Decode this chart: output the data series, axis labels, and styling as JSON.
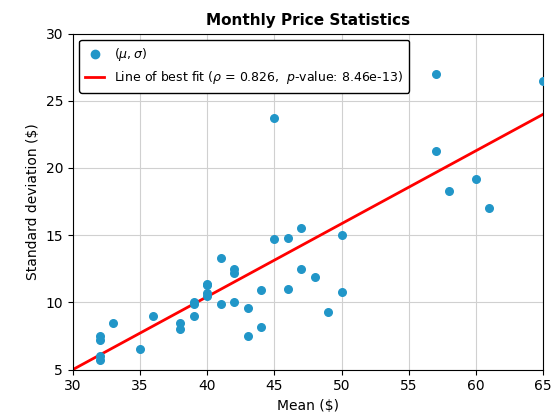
{
  "title": "Monthly Price Statistics",
  "xlabel": "Mean ($)",
  "ylabel": "Standard deviation ($)",
  "xlim": [
    30,
    65
  ],
  "ylim": [
    5,
    30
  ],
  "xticks": [
    30,
    35,
    40,
    45,
    50,
    55,
    60,
    65
  ],
  "yticks": [
    5,
    10,
    15,
    20,
    25,
    30
  ],
  "scatter_x": [
    32,
    32,
    32,
    32,
    33,
    35,
    36,
    38,
    38,
    39,
    39,
    39,
    40,
    40,
    40,
    40,
    41,
    41,
    42,
    42,
    42,
    43,
    43,
    44,
    44,
    45,
    45,
    46,
    46,
    47,
    47,
    48,
    49,
    50,
    50,
    57,
    57,
    58,
    60,
    61,
    65
  ],
  "scatter_y": [
    7.5,
    7.2,
    6.0,
    5.7,
    8.5,
    6.5,
    9.0,
    8.5,
    8.0,
    9.9,
    10.0,
    9.0,
    10.7,
    10.5,
    11.4,
    11.3,
    13.3,
    9.9,
    12.5,
    12.2,
    10.0,
    9.6,
    7.5,
    10.9,
    8.2,
    23.7,
    14.7,
    14.8,
    11.0,
    15.5,
    12.5,
    11.9,
    9.3,
    15.0,
    10.8,
    21.3,
    27.0,
    18.3,
    19.2,
    17.0,
    26.5
  ],
  "line_x": [
    30,
    65
  ],
  "line_y": [
    5.0,
    24.0
  ],
  "scatter_color": "#2196c8",
  "scatter_marker": "o",
  "scatter_size": 30,
  "line_color": "#ff0000",
  "line_width": 2.0,
  "legend_line_label": "Line of best fit (ρ = 0.826,  p-value: 8.46e-13)",
  "grid": true,
  "grid_color": "#d0d0d0",
  "background_color": "#ffffff",
  "title_fontsize": 11,
  "label_fontsize": 10,
  "tick_fontsize": 10,
  "legend_fontsize": 9
}
